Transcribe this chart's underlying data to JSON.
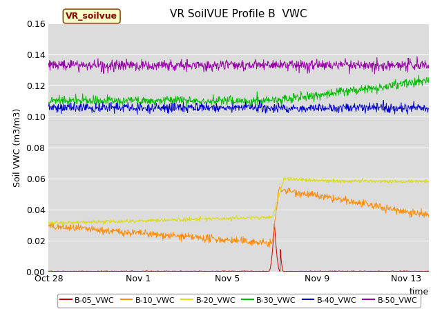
{
  "title": "VR SoilVUE Profile B  VWC",
  "xlabel": "time",
  "ylabel": "Soil VWC (m3/m3)",
  "ylim": [
    0.0,
    0.16
  ],
  "background_color": "#dcdcdc",
  "series": {
    "B-05_VWC": {
      "color": "#cc0000"
    },
    "B-10_VWC": {
      "color": "#ff8c00"
    },
    "B-20_VWC": {
      "color": "#dddd00"
    },
    "B-30_VWC": {
      "color": "#00bb00"
    },
    "B-40_VWC": {
      "color": "#0000cc"
    },
    "B-50_VWC": {
      "color": "#9900aa"
    }
  },
  "legend_label": "VR_soilvue",
  "legend_bg": "#ffffcc",
  "legend_edge": "#cc0000",
  "xtick_labels": [
    "Oct 28",
    "Nov 1",
    "Nov 5",
    "Nov 9",
    "Nov 13"
  ],
  "xtick_days": [
    0,
    4,
    8,
    12,
    16
  ],
  "total_days": 17,
  "event_day": 10.0
}
